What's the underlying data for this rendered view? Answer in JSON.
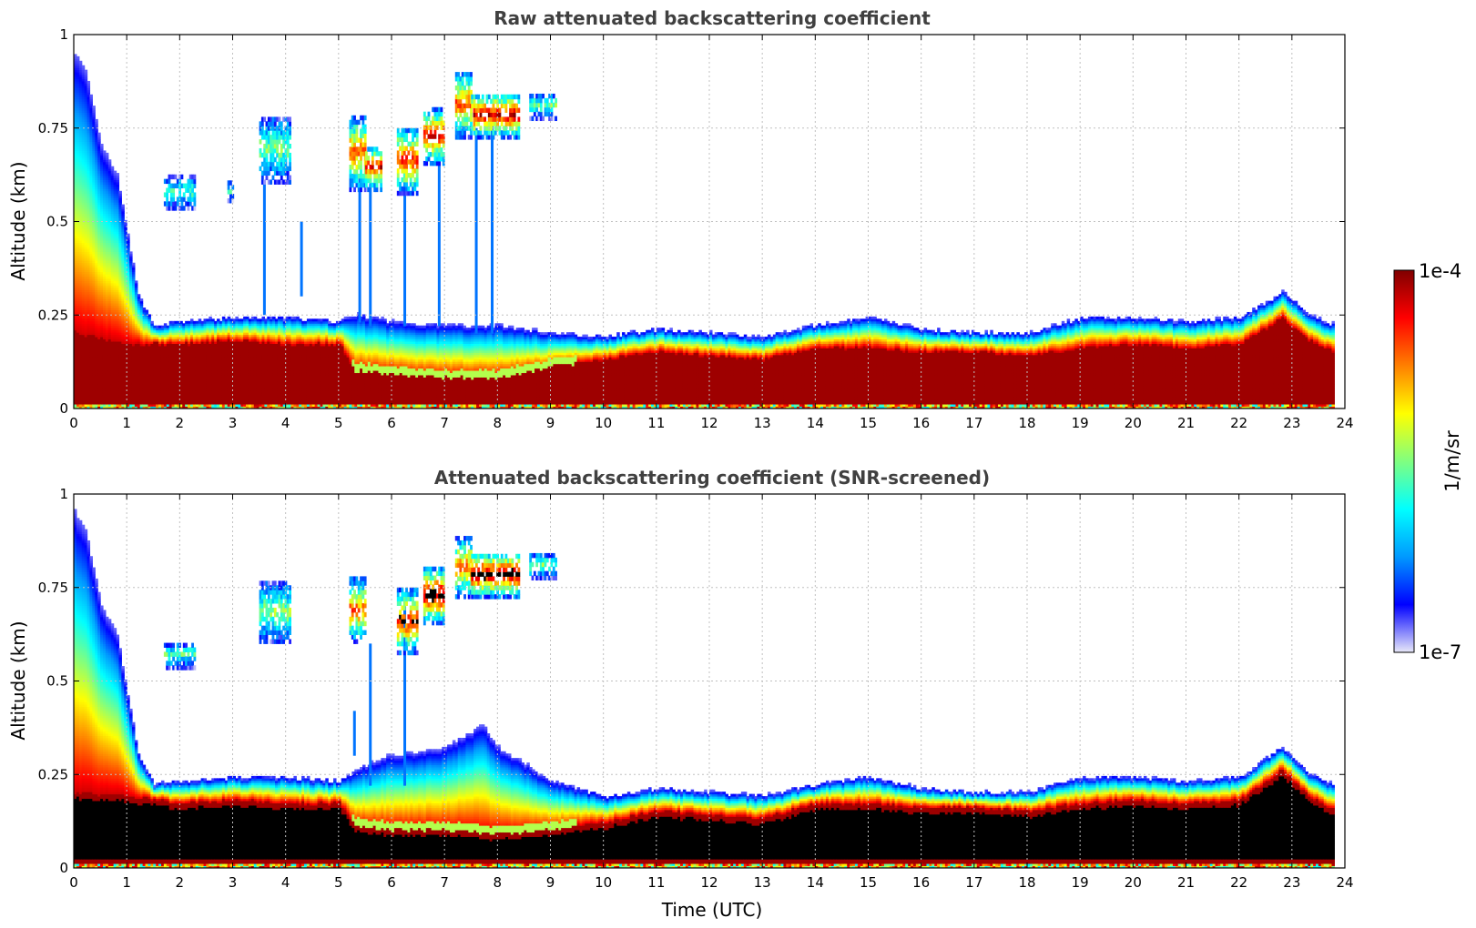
{
  "chart_data": [
    {
      "type": "heatmap",
      "title": "Raw attenuated backscattering coefficient",
      "xlabel": "",
      "ylabel": "Altitude (km)",
      "xlim": [
        0,
        24
      ],
      "ylim": [
        0,
        1
      ],
      "xticks": [
        0,
        1,
        2,
        3,
        4,
        5,
        6,
        7,
        8,
        9,
        10,
        11,
        12,
        13,
        14,
        15,
        16,
        17,
        18,
        19,
        20,
        21,
        22,
        23,
        24
      ],
      "yticks": [
        0,
        0.25,
        0.5,
        0.75,
        1
      ],
      "ytick_labels": [
        "0",
        "0.25",
        "0.5",
        "0.75",
        "1"
      ],
      "grid": true,
      "data_end_hour": 23.8,
      "layer_top_km": [
        [
          0,
          0.95
        ],
        [
          0.2,
          0.9
        ],
        [
          0.5,
          0.7
        ],
        [
          0.8,
          0.62
        ],
        [
          1.2,
          0.3
        ],
        [
          1.5,
          0.22
        ],
        [
          2,
          0.23
        ],
        [
          3,
          0.24
        ],
        [
          4,
          0.24
        ],
        [
          5,
          0.23
        ],
        [
          5.3,
          0.25
        ],
        [
          6,
          0.23
        ],
        [
          7,
          0.22
        ],
        [
          8,
          0.22
        ],
        [
          9,
          0.2
        ],
        [
          10,
          0.19
        ],
        [
          11,
          0.21
        ],
        [
          12,
          0.2
        ],
        [
          13,
          0.19
        ],
        [
          14,
          0.22
        ],
        [
          15,
          0.24
        ],
        [
          16,
          0.21
        ],
        [
          17,
          0.2
        ],
        [
          18,
          0.2
        ],
        [
          19,
          0.24
        ],
        [
          20,
          0.24
        ],
        [
          21,
          0.23
        ],
        [
          22,
          0.24
        ],
        [
          22.8,
          0.31
        ],
        [
          23.3,
          0.25
        ],
        [
          23.8,
          0.22
        ]
      ],
      "dense_layer_km": [
        [
          0,
          0.2
        ],
        [
          1,
          0.17
        ],
        [
          2,
          0.17
        ],
        [
          3,
          0.18
        ],
        [
          4,
          0.17
        ],
        [
          5,
          0.17
        ],
        [
          5.3,
          0.1
        ],
        [
          6,
          0.09
        ],
        [
          7,
          0.08
        ],
        [
          8,
          0.08
        ],
        [
          9,
          0.11
        ],
        [
          10,
          0.13
        ],
        [
          11,
          0.15
        ],
        [
          12,
          0.14
        ],
        [
          13,
          0.13
        ],
        [
          14,
          0.16
        ],
        [
          15,
          0.16
        ],
        [
          16,
          0.15
        ],
        [
          17,
          0.15
        ],
        [
          18,
          0.14
        ],
        [
          19,
          0.16
        ],
        [
          20,
          0.17
        ],
        [
          21,
          0.16
        ],
        [
          22,
          0.17
        ],
        [
          22.8,
          0.24
        ],
        [
          23.3,
          0.18
        ],
        [
          23.8,
          0.15
        ]
      ],
      "cloud_patches": [
        {
          "t0": 1.7,
          "t1": 2.3,
          "z0": 0.53,
          "z1": 0.62,
          "level": 0.45
        },
        {
          "t0": 2.9,
          "t1": 3.0,
          "z0": 0.55,
          "z1": 0.6,
          "level": 0.4
        },
        {
          "t0": 3.5,
          "t1": 4.1,
          "z0": 0.6,
          "z1": 0.78,
          "level": 0.5
        },
        {
          "t0": 5.2,
          "t1": 5.5,
          "z0": 0.58,
          "z1": 0.78,
          "level": 0.8
        },
        {
          "t0": 5.5,
          "t1": 5.8,
          "z0": 0.58,
          "z1": 0.7,
          "level": 0.9
        },
        {
          "t0": 6.1,
          "t1": 6.5,
          "z0": 0.57,
          "z1": 0.75,
          "level": 0.85
        },
        {
          "t0": 6.6,
          "t1": 7.0,
          "z0": 0.65,
          "z1": 0.8,
          "level": 0.9
        },
        {
          "t0": 7.2,
          "t1": 7.5,
          "z0": 0.72,
          "z1": 0.9,
          "level": 0.8
        },
        {
          "t0": 7.5,
          "t1": 8.4,
          "z0": 0.72,
          "z1": 0.84,
          "level": 0.95
        },
        {
          "t0": 8.6,
          "t1": 9.1,
          "z0": 0.77,
          "z1": 0.84,
          "level": 0.5
        }
      ],
      "streaks": [
        {
          "t": 5.4,
          "z0": 0.23,
          "z1": 0.62
        },
        {
          "t": 5.6,
          "z0": 0.22,
          "z1": 0.6
        },
        {
          "t": 6.25,
          "z0": 0.22,
          "z1": 0.6
        },
        {
          "t": 6.9,
          "z0": 0.22,
          "z1": 0.66
        },
        {
          "t": 7.6,
          "z0": 0.2,
          "z1": 0.75
        },
        {
          "t": 7.9,
          "z0": 0.2,
          "z1": 0.76
        },
        {
          "t": 3.6,
          "z0": 0.25,
          "z1": 0.6
        },
        {
          "t": 4.3,
          "z0": 0.3,
          "z1": 0.5
        }
      ],
      "surface_noise": true
    },
    {
      "type": "heatmap",
      "title": "Attenuated backscattering coefficient (SNR-screened)",
      "xlabel": "Time (UTC)",
      "ylabel": "Altitude (km)",
      "xlim": [
        0,
        24
      ],
      "ylim": [
        0,
        1
      ],
      "xticks": [
        0,
        1,
        2,
        3,
        4,
        5,
        6,
        7,
        8,
        9,
        10,
        11,
        12,
        13,
        14,
        15,
        16,
        17,
        18,
        19,
        20,
        21,
        22,
        23,
        24
      ],
      "yticks": [
        0,
        0.25,
        0.5,
        0.75,
        1
      ],
      "ytick_labels": [
        "0",
        "0.25",
        "0.5",
        "0.75",
        "1"
      ],
      "grid": true,
      "data_end_hour": 23.8,
      "saturated_core_color": "#000000",
      "layer_top_km": [
        [
          0,
          0.95
        ],
        [
          0.2,
          0.9
        ],
        [
          0.5,
          0.7
        ],
        [
          0.8,
          0.62
        ],
        [
          1.2,
          0.3
        ],
        [
          1.5,
          0.22
        ],
        [
          2,
          0.23
        ],
        [
          3,
          0.24
        ],
        [
          4,
          0.24
        ],
        [
          5,
          0.23
        ],
        [
          5.3,
          0.26
        ],
        [
          6,
          0.3
        ],
        [
          7,
          0.32
        ],
        [
          7.7,
          0.38
        ],
        [
          8,
          0.32
        ],
        [
          9,
          0.23
        ],
        [
          10,
          0.19
        ],
        [
          11,
          0.21
        ],
        [
          12,
          0.2
        ],
        [
          13,
          0.19
        ],
        [
          14,
          0.22
        ],
        [
          15,
          0.24
        ],
        [
          16,
          0.21
        ],
        [
          17,
          0.2
        ],
        [
          18,
          0.2
        ],
        [
          19,
          0.24
        ],
        [
          20,
          0.24
        ],
        [
          21,
          0.23
        ],
        [
          22,
          0.24
        ],
        [
          22.8,
          0.32
        ],
        [
          23.3,
          0.25
        ],
        [
          23.8,
          0.22
        ]
      ],
      "dense_layer_km": [
        [
          0,
          0.2
        ],
        [
          1,
          0.19
        ],
        [
          2,
          0.17
        ],
        [
          3,
          0.18
        ],
        [
          4,
          0.17
        ],
        [
          5,
          0.17
        ],
        [
          5.3,
          0.11
        ],
        [
          6,
          0.1
        ],
        [
          7,
          0.1
        ],
        [
          8,
          0.09
        ],
        [
          9,
          0.1
        ],
        [
          10,
          0.12
        ],
        [
          11,
          0.15
        ],
        [
          12,
          0.14
        ],
        [
          13,
          0.13
        ],
        [
          14,
          0.17
        ],
        [
          15,
          0.17
        ],
        [
          16,
          0.16
        ],
        [
          17,
          0.16
        ],
        [
          18,
          0.15
        ],
        [
          19,
          0.17
        ],
        [
          20,
          0.18
        ],
        [
          21,
          0.17
        ],
        [
          22,
          0.18
        ],
        [
          22.8,
          0.26
        ],
        [
          23.3,
          0.19
        ],
        [
          23.8,
          0.15
        ]
      ],
      "cloud_patches": [
        {
          "t0": 1.7,
          "t1": 2.3,
          "z0": 0.53,
          "z1": 0.6,
          "level": 0.45
        },
        {
          "t0": 3.5,
          "t1": 4.1,
          "z0": 0.6,
          "z1": 0.76,
          "level": 0.55
        },
        {
          "t0": 5.2,
          "t1": 5.5,
          "z0": 0.6,
          "z1": 0.77,
          "level": 0.8
        },
        {
          "t0": 6.1,
          "t1": 6.5,
          "z0": 0.57,
          "z1": 0.74,
          "level": 0.9
        },
        {
          "t0": 6.6,
          "t1": 7.0,
          "z0": 0.65,
          "z1": 0.8,
          "level": 1.0
        },
        {
          "t0": 7.2,
          "t1": 7.5,
          "z0": 0.72,
          "z1": 0.88,
          "level": 0.8
        },
        {
          "t0": 7.5,
          "t1": 8.4,
          "z0": 0.72,
          "z1": 0.84,
          "level": 1.0
        },
        {
          "t0": 8.6,
          "t1": 9.1,
          "z0": 0.77,
          "z1": 0.84,
          "level": 0.5
        }
      ],
      "streaks": [
        {
          "t": 5.3,
          "z0": 0.3,
          "z1": 0.42
        },
        {
          "t": 5.6,
          "z0": 0.22,
          "z1": 0.6
        },
        {
          "t": 6.25,
          "z0": 0.22,
          "z1": 0.7
        }
      ],
      "surface_noise": true
    }
  ],
  "colorbar": {
    "label": "1/m/sr",
    "max_label": "1e-4",
    "min_label": "1e-7",
    "colors": [
      "#e8e8f8",
      "#0000ff",
      "#0099ff",
      "#00ffff",
      "#80ff80",
      "#ffff00",
      "#ff8000",
      "#ff0000",
      "#800000"
    ]
  }
}
